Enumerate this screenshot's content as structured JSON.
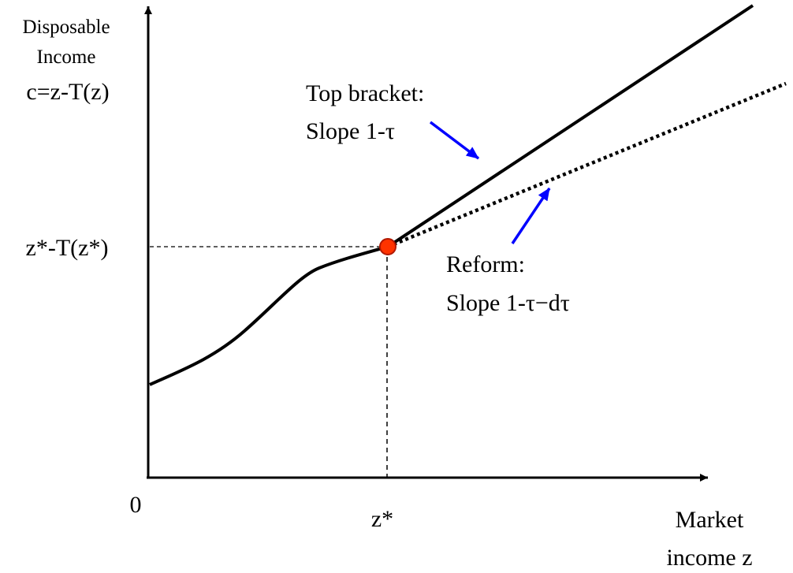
{
  "labels": {
    "y_axis_line1": "Disposable",
    "y_axis_line2": "Income",
    "y_axis_formula": "c=z-T(z)",
    "y_marker": "z*-T(z*)",
    "origin": "0",
    "x_marker": "z*",
    "x_axis_line1": "Market",
    "x_axis_line2": "income z",
    "top_bracket_line1": "Top bracket:",
    "top_bracket_line2": "Slope 1-τ",
    "reform_line1": "Reform:",
    "reform_line2": "Slope 1-τ−dτ"
  },
  "colors": {
    "curve": "#000000",
    "point_fill": "#ff3300",
    "point_stroke": "#b01800",
    "arrow": "#0000ff"
  }
}
